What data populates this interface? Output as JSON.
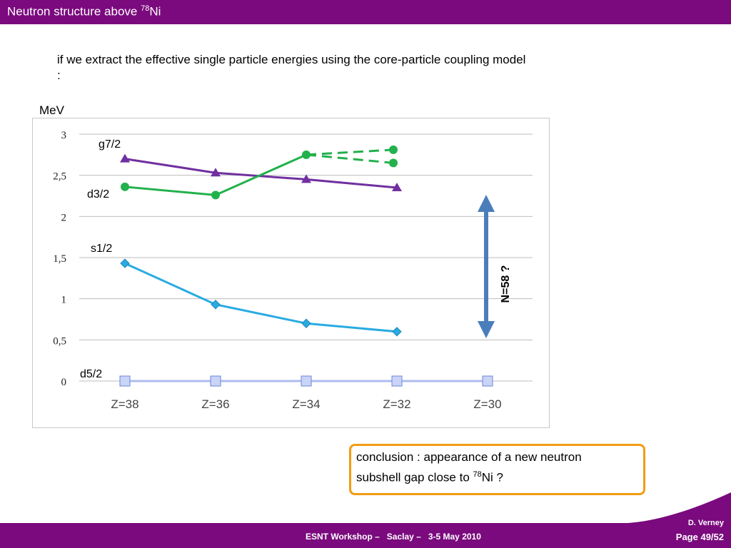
{
  "header": {
    "title_prefix": "Neutron structure above ",
    "title_sup": "78",
    "title_suffix": "Ni"
  },
  "intro_text": "if we extract the effective single particle energies using the core-particle coupling model :",
  "y_unit_label": "MeV",
  "chart_data": {
    "type": "line",
    "categories": [
      "Z=38",
      "Z=36",
      "Z=34",
      "Z=32",
      "Z=30"
    ],
    "y_ticks": [
      "0",
      "0,5",
      "1",
      "1,5",
      "2",
      "2,5",
      "3"
    ],
    "ylim": [
      0,
      3
    ],
    "grid": true,
    "series": [
      {
        "name": "g7/2",
        "values": [
          2.7,
          2.53,
          2.45,
          2.35,
          null
        ],
        "color": "#7030a0",
        "marker": "triangle"
      },
      {
        "name": "d3/2",
        "values": [
          2.36,
          2.26,
          2.75,
          null,
          null
        ],
        "color": "#22b14c",
        "marker": "circle",
        "extrapolated": [
          2.81,
          2.65
        ]
      },
      {
        "name": "s1/2",
        "values": [
          1.43,
          0.93,
          0.7,
          0.6,
          null
        ],
        "color": "#29abe2",
        "marker": "diamond"
      },
      {
        "name": "d5/2",
        "values": [
          0,
          0,
          0,
          0,
          0
        ],
        "color": "#aebcf0",
        "marker": "square"
      }
    ],
    "gap_annotation": "N=58 ?",
    "gap_color": "#4a7ebb"
  },
  "conclusion": {
    "text_line1": "conclusion : appearance of a new neutron",
    "text_line2_prefix": "subshell gap close to ",
    "text_line2_sup": "78",
    "text_line2_suffix": "Ni ?",
    "border_color": "#f39c12"
  },
  "footer": {
    "event": "ESNT Workshop –   Saclay –   3-5 May 2010",
    "author": "D. Verney",
    "page": "Page 49/52",
    "color": "#7a0a7d"
  }
}
